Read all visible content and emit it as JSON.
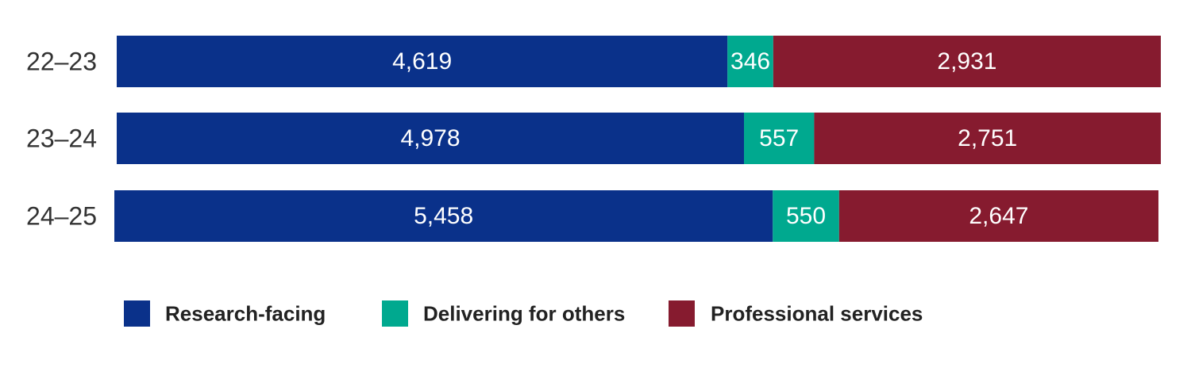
{
  "chart_data": {
    "type": "bar",
    "orientation": "horizontal",
    "stacked": true,
    "title": "",
    "xlabel": "",
    "ylabel": "",
    "grid": false,
    "legend_position": "bottom-left",
    "categories": [
      "22–23",
      "23–24",
      "24–25"
    ],
    "series": [
      {
        "name": "Research-facing",
        "values": [
          4619,
          4978,
          5458
        ],
        "labels": [
          "4,619",
          "4,978",
          "5,458"
        ],
        "color": "#0a318a"
      },
      {
        "name": "Delivering for others",
        "values": [
          346,
          557,
          550
        ],
        "labels": [
          "346",
          "557",
          "550"
        ],
        "color": "#00a98f"
      },
      {
        "name": "Professional services",
        "values": [
          2931,
          2751,
          2647
        ],
        "labels": [
          "2,931",
          "2,751",
          "2,647"
        ],
        "color": "#861b2f"
      }
    ]
  }
}
